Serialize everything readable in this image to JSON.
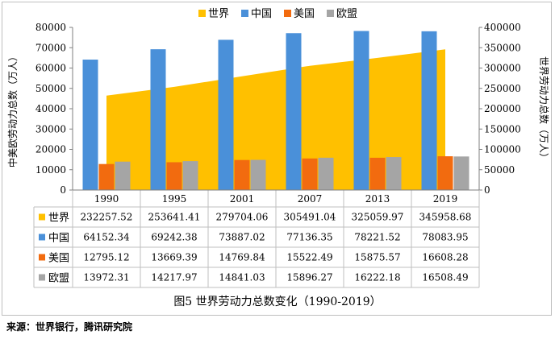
{
  "chart_data": {
    "type": "bar+area",
    "categories": [
      "1990",
      "1995",
      "2001",
      "2007",
      "2013",
      "2019"
    ],
    "series": [
      {
        "name": "世界",
        "type": "area",
        "axis": "right",
        "color": "#FFC000",
        "values": [
          232257.52,
          253641.41,
          279704.06,
          305491.04,
          325059.97,
          345958.68
        ],
        "labels": [
          "232257.52",
          "253641.41",
          "279704.06",
          "305491.04",
          "325059.97",
          "345958.68"
        ]
      },
      {
        "name": "中国",
        "type": "bar",
        "axis": "left",
        "color": "#4A90D9",
        "values": [
          64152.34,
          69242.38,
          73887.02,
          77136.35,
          78221.52,
          78083.95
        ],
        "labels": [
          "64152.34",
          "69242.38",
          "73887.02",
          "77136.35",
          "78221.52",
          "78083.95"
        ]
      },
      {
        "name": "美国",
        "type": "bar",
        "axis": "left",
        "color": "#F26B0F",
        "values": [
          12795.12,
          13669.39,
          14769.84,
          15522.49,
          15875.57,
          16608.28
        ],
        "labels": [
          "12795.12",
          "13669.39",
          "14769.84",
          "15522.49",
          "15875.57",
          "16608.28"
        ]
      },
      {
        "name": "欧盟",
        "type": "bar",
        "axis": "left",
        "color": "#A5A5A5",
        "values": [
          13972.31,
          14217.97,
          14841.03,
          15896.27,
          16222.18,
          16508.49
        ],
        "labels": [
          "13972.31",
          "14217.97",
          "14841.03",
          "15896.27",
          "16222.18",
          "16508.49"
        ]
      }
    ],
    "ylabel_left": "中美欧劳动力总数（万人）",
    "ylabel_right": "世界劳动力总数（万人）",
    "ylim_left": [
      0,
      80000
    ],
    "ylim_right": [
      0,
      400000
    ],
    "yticks_left": [
      "0",
      "10000",
      "20000",
      "30000",
      "40000",
      "50000",
      "60000",
      "70000",
      "80000"
    ],
    "yticks_right": [
      "0",
      "50000",
      "100000",
      "150000",
      "200000",
      "250000",
      "300000",
      "350000",
      "400000"
    ],
    "legend_position": "top",
    "data_table": true
  },
  "caption": "图5 世界劳动力总数变化（1990-2019）",
  "source": "来源：世界银行，腾讯研究院"
}
